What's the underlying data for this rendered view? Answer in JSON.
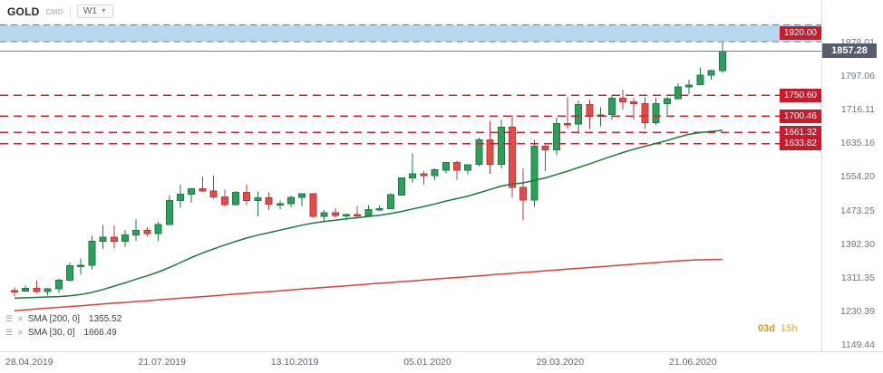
{
  "header": {
    "symbol": "GOLD",
    "account_type": "CMD",
    "timeframe": "W1"
  },
  "legend": {
    "sma200": {
      "label": "SMA [200, 0]",
      "value": "1355.52"
    },
    "sma30": {
      "label": "SMA [30, 0]",
      "value": "1666.49"
    }
  },
  "countdown": {
    "days": "03d",
    "hours": "15h"
  },
  "chart_data": {
    "type": "candlestick",
    "symbol": "GOLD",
    "timeframe": "W1",
    "price_range": {
      "top": 1980.5,
      "bottom": 1134.2
    },
    "axis_ticks": [
      "1878.01",
      "1797.06",
      "1716.11",
      "1635.16",
      "1554.20",
      "1473.25",
      "1392.30",
      "1311.35",
      "1230.39",
      "1149.44"
    ],
    "x_labels": [
      {
        "text": "28.04.2019",
        "index": 0
      },
      {
        "text": "21.07.2019",
        "index": 12
      },
      {
        "text": "13.10.2019",
        "index": 24
      },
      {
        "text": "05.01.2020",
        "index": 36
      },
      {
        "text": "29.03.2020",
        "index": 48
      },
      {
        "text": "21.06.2020",
        "index": 60
      }
    ],
    "current_price": "1857.28",
    "resistance_band": {
      "top": 1920.0,
      "bottom": 1880.0,
      "label": "1920.00"
    },
    "levels": [
      "1750.60",
      "1700.46",
      "1661.32",
      "1633.82"
    ],
    "candles": [
      [
        1280,
        1288,
        1266,
        1279
      ],
      [
        1279,
        1292,
        1277,
        1286
      ],
      [
        1286,
        1304,
        1274,
        1278
      ],
      [
        1278,
        1287,
        1269,
        1285
      ],
      [
        1285,
        1309,
        1275,
        1305
      ],
      [
        1305,
        1348,
        1302,
        1340
      ],
      [
        1340,
        1358,
        1319,
        1341
      ],
      [
        1341,
        1412,
        1332,
        1399
      ],
      [
        1399,
        1439,
        1381,
        1409
      ],
      [
        1409,
        1437,
        1382,
        1399
      ],
      [
        1399,
        1427,
        1386,
        1415
      ],
      [
        1415,
        1452,
        1400,
        1425
      ],
      [
        1425,
        1433,
        1411,
        1418
      ],
      [
        1418,
        1446,
        1400,
        1440
      ],
      [
        1440,
        1510,
        1438,
        1497
      ],
      [
        1497,
        1535,
        1480,
        1513
      ],
      [
        1513,
        1528,
        1492,
        1526
      ],
      [
        1526,
        1555,
        1517,
        1520
      ],
      [
        1520,
        1557,
        1502,
        1506
      ],
      [
        1506,
        1524,
        1483,
        1488
      ],
      [
        1488,
        1520,
        1485,
        1517
      ],
      [
        1517,
        1535,
        1486,
        1497
      ],
      [
        1497,
        1519,
        1459,
        1504
      ],
      [
        1504,
        1517,
        1474,
        1489
      ],
      [
        1489,
        1497,
        1477,
        1490
      ],
      [
        1490,
        1508,
        1481,
        1505
      ],
      [
        1505,
        1514,
        1483,
        1514
      ],
      [
        1514,
        1516,
        1456,
        1459
      ],
      [
        1459,
        1474,
        1445,
        1468
      ],
      [
        1468,
        1479,
        1456,
        1462
      ],
      [
        1462,
        1466,
        1450,
        1464
      ],
      [
        1464,
        1484,
        1458,
        1460
      ],
      [
        1460,
        1487,
        1458,
        1476
      ],
      [
        1476,
        1485,
        1472,
        1478
      ],
      [
        1478,
        1515,
        1477,
        1511
      ],
      [
        1511,
        1553,
        1510,
        1552
      ],
      [
        1552,
        1611,
        1540,
        1562
      ],
      [
        1562,
        1568,
        1536,
        1557
      ],
      [
        1557,
        1575,
        1546,
        1571
      ],
      [
        1571,
        1589,
        1563,
        1589
      ],
      [
        1589,
        1593,
        1547,
        1570
      ],
      [
        1570,
        1584,
        1561,
        1584
      ],
      [
        1584,
        1649,
        1580,
        1643
      ],
      [
        1643,
        1689,
        1562,
        1585
      ],
      [
        1585,
        1692,
        1575,
        1674
      ],
      [
        1674,
        1704,
        1504,
        1529
      ],
      [
        1529,
        1575,
        1451,
        1498
      ],
      [
        1498,
        1644,
        1482,
        1628
      ],
      [
        1628,
        1631,
        1568,
        1620
      ],
      [
        1620,
        1697,
        1606,
        1683
      ],
      [
        1683,
        1747,
        1671,
        1682
      ],
      [
        1682,
        1738,
        1659,
        1729
      ],
      [
        1729,
        1741,
        1670,
        1700
      ],
      [
        1700,
        1722,
        1676,
        1704
      ],
      [
        1704,
        1751,
        1691,
        1744
      ],
      [
        1744,
        1765,
        1717,
        1735
      ],
      [
        1735,
        1744,
        1693,
        1731
      ],
      [
        1731,
        1746,
        1670,
        1685
      ],
      [
        1685,
        1745,
        1680,
        1731
      ],
      [
        1731,
        1747,
        1704,
        1743
      ],
      [
        1743,
        1780,
        1741,
        1771
      ],
      [
        1771,
        1789,
        1754,
        1776
      ],
      [
        1776,
        1818,
        1775,
        1799
      ],
      [
        1799,
        1813,
        1789,
        1810
      ],
      [
        1810,
        1878,
        1805,
        1857
      ]
    ],
    "sma30": [
      1262,
      1263,
      1264,
      1265,
      1266,
      1268,
      1271,
      1276,
      1283,
      1291,
      1299,
      1308,
      1316,
      1325,
      1336,
      1348,
      1360,
      1371,
      1381,
      1390,
      1399,
      1407,
      1414,
      1420,
      1426,
      1432,
      1438,
      1443,
      1447,
      1450,
      1453,
      1456,
      1459,
      1462,
      1466,
      1471,
      1477,
      1483,
      1489,
      1496,
      1502,
      1508,
      1516,
      1524,
      1532,
      1537,
      1540,
      1546,
      1552,
      1560,
      1568,
      1577,
      1586,
      1595,
      1604,
      1613,
      1621,
      1628,
      1635,
      1642,
      1650,
      1657,
      1661,
      1664,
      1666.5
    ],
    "sma200": [
      1232,
      1234,
      1236,
      1238,
      1240,
      1242,
      1244,
      1246,
      1248,
      1250,
      1252,
      1254,
      1256,
      1258,
      1260,
      1262,
      1264,
      1266,
      1268,
      1270,
      1272,
      1274,
      1276,
      1278,
      1280,
      1282,
      1284,
      1286,
      1288,
      1290,
      1292,
      1294,
      1296,
      1298,
      1300,
      1302,
      1304,
      1306,
      1308,
      1310,
      1312,
      1314,
      1316,
      1318,
      1320,
      1322,
      1324,
      1326,
      1328,
      1330,
      1332,
      1334,
      1336,
      1338,
      1340,
      1342,
      1344,
      1346,
      1348,
      1350,
      1352,
      1353.5,
      1354.5,
      1355,
      1355.5
    ],
    "colors": {
      "up": "#2aa05b",
      "up_border": "#1d7b41",
      "down": "#e54c48",
      "down_border": "#b93838",
      "sma30": "#1a7a3e",
      "sma200": "#e03c38",
      "level": "#cf2333",
      "badge": "#c81a2b",
      "band_fill": "#b7d8ef",
      "band_line": "#3e86c8",
      "price_line": "#757b85",
      "price_badge": "#565e6c"
    }
  }
}
